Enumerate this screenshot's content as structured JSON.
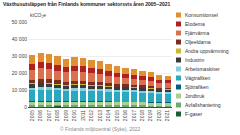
{
  "chart_data": {
    "type": "bar",
    "stacked": true,
    "title": "Växthusutsläppen från Finlands kommuner sektorsvis åren 2005–2021",
    "subtitle": "ktCO₂e",
    "footnote": "© Finlands miljöcentral (Syke), 2022",
    "x": [
      2005,
      2006,
      2007,
      2008,
      2009,
      2010,
      2011,
      2012,
      2013,
      2014,
      2015,
      2016,
      2017,
      2018,
      2019,
      2020,
      2021
    ],
    "xlim": [
      2004.5,
      2021.5
    ],
    "xticks": [
      2005,
      2006,
      2007,
      2008,
      2009,
      2010,
      2011,
      2012,
      2013,
      2014,
      2015,
      2016,
      2017,
      2018,
      2019,
      2020,
      2021
    ],
    "ylim": [
      0,
      50000
    ],
    "yticks": [
      0,
      {
        "value": 10000,
        "label": "10 000"
      },
      {
        "value": 20000,
        "label": "20 000"
      },
      {
        "value": 30000,
        "label": "30 000"
      },
      {
        "value": 40000,
        "label": "40 000"
      },
      {
        "value": 50000,
        "label": "50 000"
      }
    ],
    "grid": true,
    "legend": "right",
    "series": [
      {
        "name": "F-gaser",
        "color": "#1a5e38",
        "values": [
          280,
          290,
          295,
          300,
          290,
          295,
          290,
          285,
          280,
          275,
          270,
          265,
          260,
          255,
          250,
          245,
          240
        ]
      },
      {
        "name": "Avfallshantering",
        "color": "#6aaa7a",
        "values": [
          900,
          880,
          860,
          840,
          820,
          800,
          780,
          760,
          740,
          720,
          700,
          680,
          660,
          640,
          620,
          600,
          580
        ]
      },
      {
        "name": "Jordbruk",
        "color": "#aacf8e",
        "values": [
          1800,
          1820,
          1810,
          1800,
          1790,
          1800,
          1800,
          1800,
          1800,
          1790,
          1780,
          1780,
          1780,
          1780,
          1770,
          1760,
          1750
        ]
      },
      {
        "name": "Sjötrafiken",
        "color": "#006080",
        "values": [
          500,
          510,
          515,
          510,
          490,
          505,
          500,
          490,
          480,
          470,
          460,
          465,
          455,
          445,
          435,
          380,
          400
        ]
      },
      {
        "name": "Vägtrafiken",
        "color": "#29a8c0",
        "values": [
          6500,
          6700,
          6600,
          6400,
          6100,
          6300,
          6200,
          6100,
          6000,
          5800,
          5700,
          5650,
          5550,
          5400,
          5200,
          4700,
          4800
        ]
      },
      {
        "name": "Arbetsmaskiner",
        "color": "#85d0de",
        "values": [
          1400,
          1450,
          1480,
          1420,
          1300,
          1380,
          1370,
          1350,
          1320,
          1250,
          1230,
          1220,
          1200,
          1180,
          1160,
          1000,
          1050
        ]
      },
      {
        "name": "Industrin",
        "color": "#3a3a3a",
        "values": [
          2000,
          2200,
          2100,
          1900,
          1600,
          1900,
          2000,
          1800,
          1700,
          1500,
          1400,
          1450,
          1400,
          1350,
          1300,
          1200,
          1150
        ]
      },
      {
        "name": "Andra uppvärmning",
        "color": "#c8b830",
        "values": [
          450,
          465,
          460,
          450,
          440,
          450,
          440,
          430,
          420,
          405,
          395,
          385,
          375,
          365,
          355,
          345,
          335
        ]
      },
      {
        "name": "Oljeeldarna",
        "color": "#7a2e20",
        "values": [
          2200,
          2300,
          2200,
          2100,
          2000,
          2050,
          1980,
          1900,
          1820,
          1700,
          1600,
          1500,
          1420,
          1340,
          1260,
          1180,
          1100
        ]
      },
      {
        "name": "Fjärrvärma",
        "color": "#d97050",
        "values": [
          5800,
          6200,
          5900,
          5700,
          5500,
          5600,
          5450,
          5200,
          5000,
          4500,
          4100,
          3900,
          3650,
          3400,
          3100,
          2900,
          2750
        ]
      },
      {
        "name": "Elodema",
        "color": "#b02020",
        "values": [
          3500,
          3700,
          3500,
          3350,
          3200,
          3250,
          3100,
          2980,
          2850,
          2600,
          2400,
          2280,
          2170,
          2050,
          1930,
          1820,
          1700
        ]
      },
      {
        "name": "Konsumtionsel",
        "color": "#e09030",
        "values": [
          5200,
          5500,
          5300,
          5100,
          4900,
          5000,
          4900,
          4700,
          4500,
          4100,
          3800,
          3600,
          3400,
          3200,
          3000,
          2800,
          2600
        ]
      }
    ]
  }
}
